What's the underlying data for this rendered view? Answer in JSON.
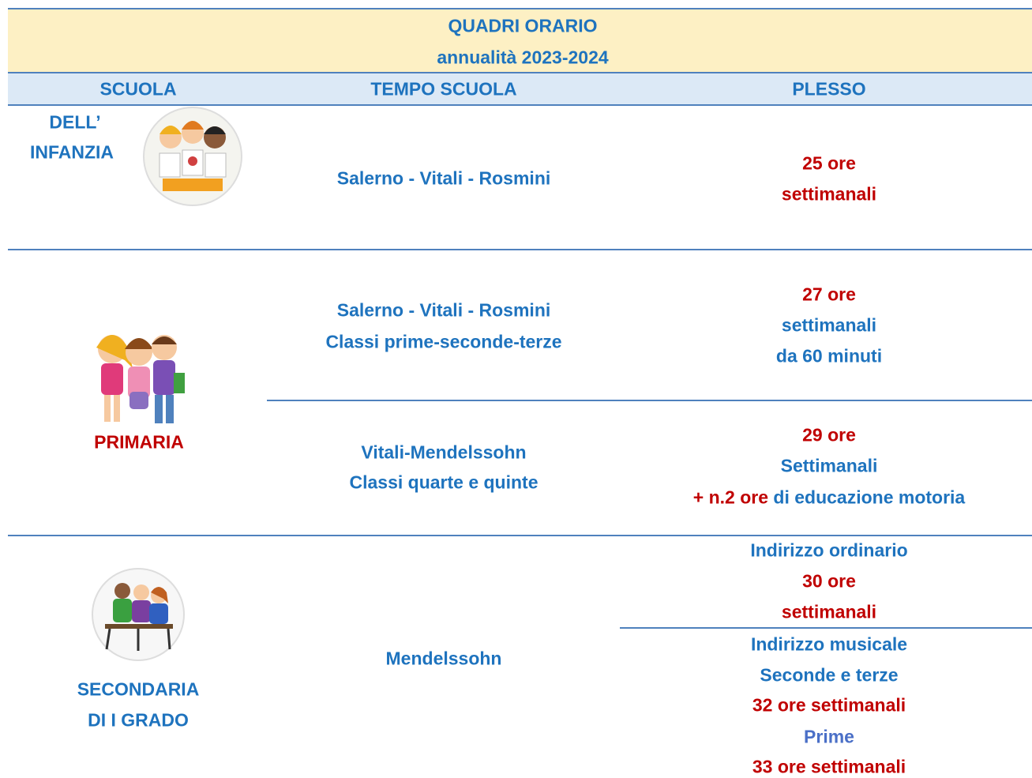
{
  "header": {
    "title": "QUADRI ORARIO",
    "subtitle": "annualità 2023-2024"
  },
  "table": {
    "columns": [
      "SCUOLA",
      "TEMPO SCUOLA",
      "PLESSO"
    ],
    "rows": [
      {
        "scuola": [
          "DELL’",
          "INFANZIA"
        ],
        "tempo": [
          [
            "Salerno - Vitali - Rosmini"
          ]
        ],
        "plesso": [
          [
            "25 ore",
            "settimanali"
          ]
        ]
      },
      {
        "scuola": [
          "PRIMARIA"
        ],
        "tempo": [
          [
            "Salerno - Vitali - Rosmini",
            "Classi prime-seconde-terze"
          ],
          [
            "Vitali-Mendelssohn",
            "Classi quarte e quinte"
          ]
        ],
        "plesso": [
          [
            "27 ore",
            "settimanali",
            "da 60 minuti"
          ],
          [
            "29 ore",
            "Settimanali",
            "+ n.2 ore",
            "di educazione motoria"
          ]
        ]
      },
      {
        "scuola": [
          "SECONDARIA",
          "DI I GRADO"
        ],
        "tempo": [
          [
            "Mendelssohn"
          ]
        ],
        "plesso": [
          [
            "Indirizzo ordinario",
            "30 ore",
            "settimanali"
          ],
          [
            "Indirizzo musicale",
            "Seconde e terze",
            "32 ore settimanali",
            "Prime",
            "33 ore settimanali"
          ]
        ]
      }
    ]
  }
}
